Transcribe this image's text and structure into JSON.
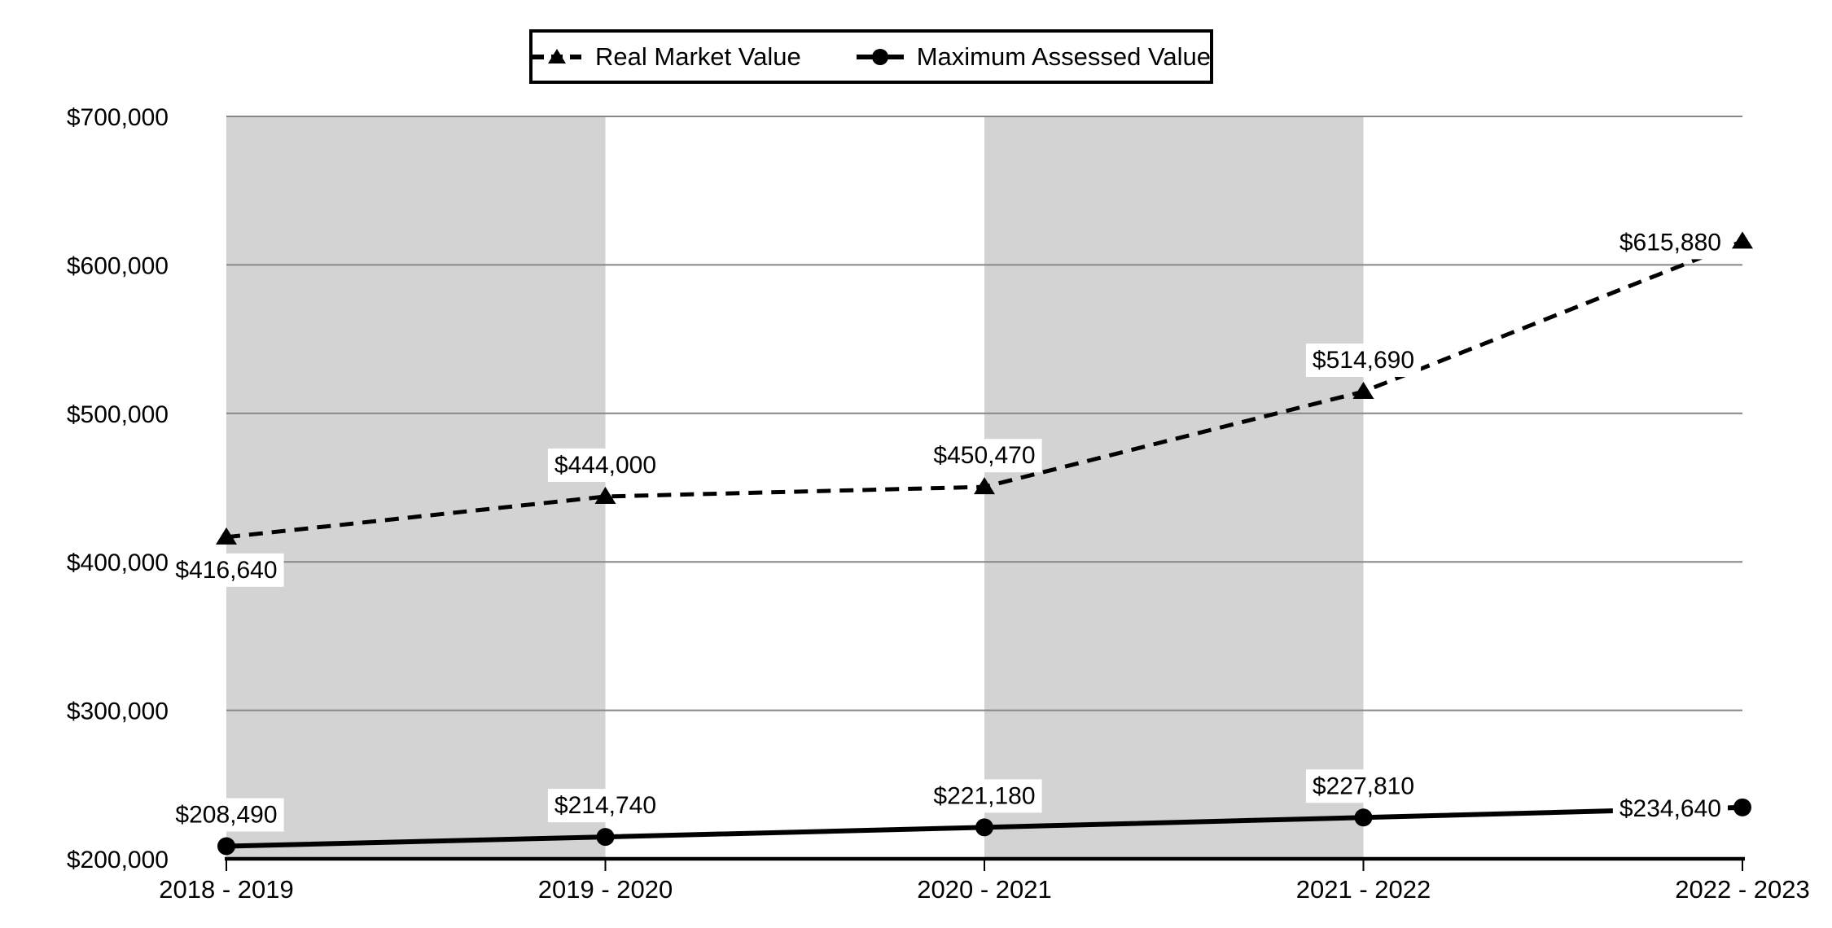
{
  "legend": {
    "items": [
      {
        "label": "Real Market Value",
        "sample": "dashed-line-triangle-marker"
      },
      {
        "label": "Maximum Assessed Value",
        "sample": "solid-line-circle-marker"
      }
    ]
  },
  "chart_data": {
    "type": "line",
    "title": "",
    "xlabel": "",
    "ylabel": "",
    "categories": [
      "2018 - 2019",
      "2019 - 2020",
      "2020 - 2021",
      "2021 - 2022",
      "2022 - 2023"
    ],
    "series": [
      {
        "name": "Real Market Value",
        "line_style": "dashed",
        "marker": "triangle",
        "values": [
          416640,
          444000,
          450470,
          514690,
          615880
        ],
        "data_labels": [
          "$416,640",
          "$444,000",
          "$450,470",
          "$514,690",
          "$615,880"
        ],
        "label_positions": [
          "below",
          "above",
          "above",
          "above",
          "left"
        ]
      },
      {
        "name": "Maximum Assessed Value",
        "line_style": "solid",
        "marker": "circle",
        "values": [
          208490,
          214740,
          221180,
          227810,
          234640
        ],
        "data_labels": [
          "$208,490",
          "$214,740",
          "$221,180",
          "$227,810",
          "$234,640"
        ],
        "label_positions": [
          "above",
          "above",
          "above",
          "above",
          "left"
        ]
      }
    ],
    "ylim": [
      200000,
      700000
    ],
    "ytick_step": 100000,
    "ytick_labels": [
      "$200,000",
      "$300,000",
      "$400,000",
      "$500,000",
      "$600,000",
      "$700,000"
    ],
    "grid": "horizontal",
    "shaded_column_bands": [
      [
        0,
        1
      ],
      [
        2,
        3
      ]
    ],
    "legend_position": "top-center",
    "colors": {
      "line": "#000000",
      "band": "#d3d3d3",
      "gridline": "#878787",
      "axis": "#000000",
      "label_background": "#ffffff",
      "text": "#000000"
    }
  }
}
